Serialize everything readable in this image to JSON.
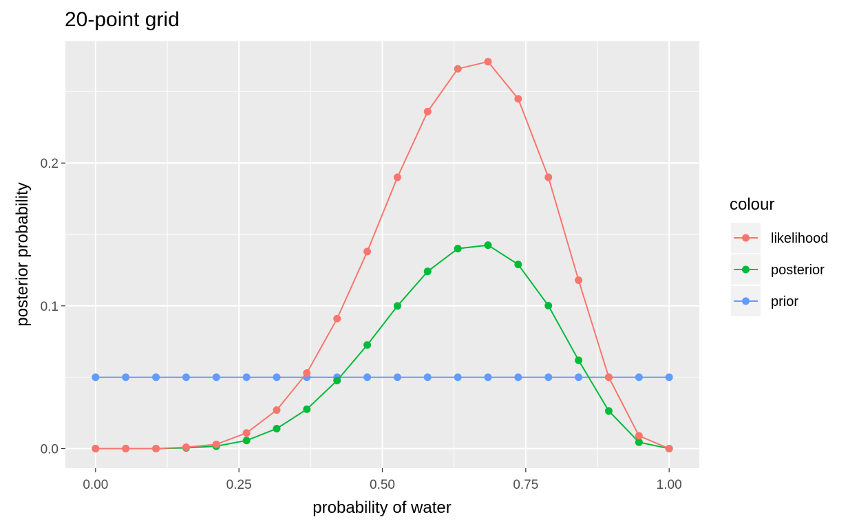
{
  "chart_data": {
    "type": "line",
    "title": "20-point grid",
    "xlabel": "probability of water",
    "ylabel": "posterior probability",
    "xlim": [
      -0.0526,
      1.0526
    ],
    "ylim": [
      -0.0137,
      0.2853
    ],
    "x_ticks": [
      0,
      0.25,
      0.5,
      0.75,
      1
    ],
    "x_tick_labels": [
      "0.00",
      "0.25",
      "0.50",
      "0.75",
      "1.00"
    ],
    "y_ticks": [
      0,
      0.1,
      0.2
    ],
    "y_tick_labels": [
      "0.0",
      "0.1",
      "0.2"
    ],
    "grid": true,
    "legend": {
      "title": "colour",
      "position": "right"
    },
    "x": [
      0,
      0.0526,
      0.1053,
      0.1579,
      0.2105,
      0.2632,
      0.3158,
      0.3684,
      0.4211,
      0.4737,
      0.5263,
      0.5789,
      0.6316,
      0.6842,
      0.7368,
      0.7895,
      0.8421,
      0.8947,
      0.9474,
      1
    ],
    "series": [
      {
        "name": "likelihood",
        "color": "#F8766D",
        "values": [
          0,
          0,
          0,
          0.001,
          0.003,
          0.011,
          0.027,
          0.053,
          0.091,
          0.138,
          0.19,
          0.236,
          0.266,
          0.271,
          0.245,
          0.19,
          0.118,
          0.05,
          0.009,
          0
        ]
      },
      {
        "name": "posterior",
        "color": "#00BA38",
        "values": [
          0,
          0,
          0,
          0.0005,
          0.0017,
          0.0057,
          0.014,
          0.0276,
          0.0477,
          0.0726,
          0.0999,
          0.1241,
          0.1401,
          0.1425,
          0.129,
          0.1001,
          0.0619,
          0.0264,
          0.0045,
          0
        ]
      },
      {
        "name": "prior",
        "color": "#619CFF",
        "values": [
          0.05,
          0.05,
          0.05,
          0.05,
          0.05,
          0.05,
          0.05,
          0.05,
          0.05,
          0.05,
          0.05,
          0.05,
          0.05,
          0.05,
          0.05,
          0.05,
          0.05,
          0.05,
          0.05,
          0.05
        ]
      }
    ]
  }
}
